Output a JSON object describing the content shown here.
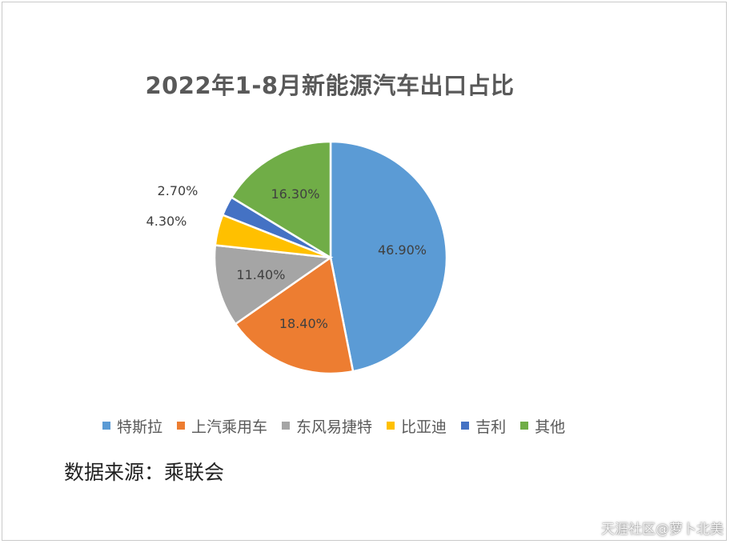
{
  "chart_data": {
    "type": "pie",
    "title": "2022年1-8月新能源汽车出口占比",
    "categories": [
      "特斯拉",
      "上汽乘用车",
      "东风易捷特",
      "比亚迪",
      "吉利",
      "其他"
    ],
    "values": [
      46.9,
      18.4,
      11.4,
      4.3,
      2.7,
      16.3
    ],
    "data_labels": [
      "46.90%",
      "18.40%",
      "11.40%",
      "4.30%",
      "2.70%",
      "16.30%"
    ],
    "colors": [
      "#5B9BD5",
      "#ED7D31",
      "#A5A5A5",
      "#FFC000",
      "#4472C4",
      "#70AD47"
    ],
    "legend_placement": "bottom"
  },
  "source_text": "数据来源：乘联会",
  "watermark": "天涯社区@萝卜北美"
}
